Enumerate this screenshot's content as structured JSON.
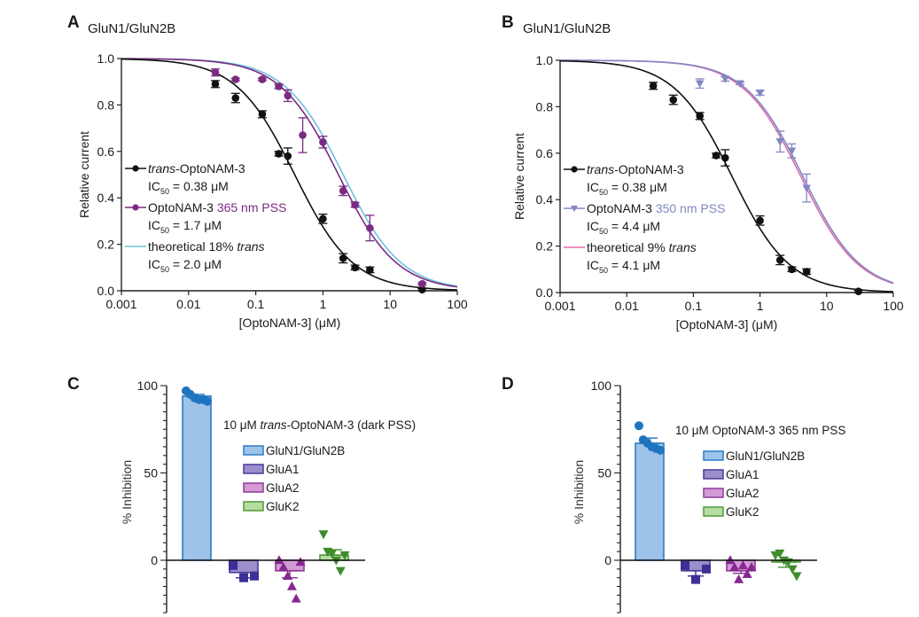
{
  "chart_data": [
    {
      "id": "A",
      "type": "scatter",
      "panel_letter": "A",
      "title": "GluN1/GluN2B",
      "xlabel": "[OptoNAM-3] (μM)",
      "ylabel": "Relative current",
      "xscale": "log",
      "xlim": [
        0.001,
        100
      ],
      "ylim": [
        0,
        1.0
      ],
      "xticks": [
        0.001,
        0.01,
        0.1,
        1,
        10,
        100
      ],
      "xtick_labels": [
        "0.001",
        "0.01",
        "0.1",
        "1",
        "10",
        "100"
      ],
      "yticks": [
        0,
        0.2,
        0.4,
        0.6,
        0.8,
        1.0
      ],
      "ytick_labels": [
        "0.0",
        "0.2",
        "0.4",
        "0.6",
        "0.8",
        "1.0"
      ],
      "legend_position": "center-left",
      "series": [
        {
          "name": "trans-OptoNAM-3",
          "legend_prefix_italic": "trans",
          "legend_main": "-OptoNAM-3",
          "legend_ic50": "= 0.38 μM",
          "color": "#111111",
          "marker": "circle",
          "fit": {
            "ic50": 0.38,
            "hill": 1.0
          },
          "x": [
            0.025,
            0.05,
            0.125,
            0.22,
            0.3,
            1,
            2,
            3,
            5,
            30
          ],
          "y": [
            0.89,
            0.83,
            0.76,
            0.59,
            0.58,
            0.31,
            0.14,
            0.1,
            0.09,
            0.005
          ],
          "err": [
            0.015,
            0.02,
            0.015,
            0.01,
            0.035,
            0.02,
            0.02,
            0.01,
            0.012,
            0.005
          ]
        },
        {
          "name": "OptoNAM-3 365 nm PSS",
          "legend_main": "OptoNAM-3 ",
          "legend_colored": "365 nm PSS",
          "legend_ic50": "= 1.7 μM",
          "color": "#7b2a82",
          "marker": "circle",
          "fit": {
            "ic50": 1.7,
            "hill": 1.0
          },
          "x": [
            0.025,
            0.05,
            0.125,
            0.22,
            0.3,
            0.5,
            1,
            2,
            3,
            5,
            30
          ],
          "y": [
            0.94,
            0.91,
            0.91,
            0.88,
            0.84,
            0.67,
            0.64,
            0.43,
            0.37,
            0.27,
            0.03
          ],
          "err": [
            0.015,
            0.005,
            0.005,
            0.01,
            0.025,
            0.075,
            0.025,
            0.02,
            0.01,
            0.055,
            0.005
          ]
        },
        {
          "name": "theoretical 18% trans",
          "legend_main": "theoretical 18% ",
          "legend_suffix_italic": "trans",
          "legend_ic50": "= 2.0 μM",
          "color": "#6fc0dc",
          "marker": "none",
          "fit": {
            "ic50": 2.0,
            "hill": 1.0
          }
        }
      ]
    },
    {
      "id": "B",
      "type": "scatter",
      "panel_letter": "B",
      "title": "GluN1/GluN2B",
      "xlabel": "[OptoNAM-3] (μM)",
      "ylabel": "Relative current",
      "xscale": "log",
      "xlim": [
        0.001,
        100
      ],
      "ylim": [
        0,
        1.0
      ],
      "xticks": [
        0.001,
        0.01,
        0.1,
        1,
        10,
        100
      ],
      "xtick_labels": [
        "0.001",
        "0.01",
        "0.1",
        "1",
        "10",
        "100"
      ],
      "yticks": [
        0,
        0.2,
        0.4,
        0.6,
        0.8,
        1.0
      ],
      "ytick_labels": [
        "0.0",
        "0.2",
        "0.4",
        "0.6",
        "0.8",
        "1.0"
      ],
      "legend_position": "center-left",
      "series": [
        {
          "name": "trans-OptoNAM-3",
          "legend_prefix_italic": "trans",
          "legend_main": "-OptoNAM-3",
          "legend_ic50": "= 0.38 μM",
          "color": "#111111",
          "marker": "circle",
          "fit": {
            "ic50": 0.38,
            "hill": 1.0
          },
          "x": [
            0.025,
            0.05,
            0.125,
            0.22,
            0.3,
            1,
            2,
            3,
            5,
            30
          ],
          "y": [
            0.89,
            0.83,
            0.76,
            0.59,
            0.58,
            0.31,
            0.14,
            0.1,
            0.09,
            0.005
          ],
          "err": [
            0.015,
            0.02,
            0.015,
            0.01,
            0.035,
            0.02,
            0.02,
            0.01,
            0.012,
            0.005
          ]
        },
        {
          "name": "OptoNAM-3 350 nm PSS",
          "legend_main": "OptoNAM-3 ",
          "legend_colored": "350 nm PSS",
          "legend_ic50": "= 4.4 μM",
          "color": "#8187c4",
          "marker": "triangle-down",
          "fit": {
            "ic50": 4.4,
            "hill": 1.0
          },
          "x": [
            0.125,
            0.3,
            0.5,
            1,
            2,
            3,
            5
          ],
          "y": [
            0.9,
            0.92,
            0.9,
            0.86,
            0.65,
            0.61,
            0.45
          ],
          "err": [
            0.02,
            0.01,
            0.005,
            0.01,
            0.045,
            0.03,
            0.06
          ]
        },
        {
          "name": "theoretical 9% trans",
          "legend_main": "theoretical 9% ",
          "legend_suffix_italic": "trans",
          "legend_ic50": "= 4.1 μM",
          "color": "#e06aa8",
          "marker": "none",
          "fit": {
            "ic50": 4.1,
            "hill": 1.0
          }
        }
      ]
    },
    {
      "id": "C",
      "type": "bar",
      "panel_letter": "C",
      "ylabel": "% Inhibition",
      "ylim": [
        -30,
        100
      ],
      "yticks": [
        0,
        50,
        100
      ],
      "ytick_labels": [
        "0",
        "50",
        "100"
      ],
      "annotation_prefix": "10 μM ",
      "annotation_italic": "trans",
      "annotation_suffix": "-OptoNAM-3 (dark PSS)",
      "legend_position": "right",
      "categories": [
        "GluN1/GluN2B",
        "GluA1",
        "GluA2",
        "GluK2"
      ],
      "values": [
        94,
        -7,
        -6,
        3
      ],
      "sem": [
        1,
        3,
        4,
        3
      ],
      "points": [
        [
          97,
          95,
          93,
          92,
          92,
          91
        ],
        [
          -3,
          -10,
          -9
        ],
        [
          0,
          -4,
          -9,
          -15,
          -22,
          -1
        ]
      ],
      "points_gluk2": [
        15,
        5,
        4,
        0,
        -6,
        3
      ],
      "markers": [
        "circle",
        "square",
        "triangle-up",
        "triangle-down"
      ],
      "colors": [
        {
          "fill": "#9dc3e8",
          "stroke": "#2c7cc4",
          "point": "#1f74c0"
        },
        {
          "fill": "#9b8ecb",
          "stroke": "#4b3a9c",
          "point": "#3c2f96"
        },
        {
          "fill": "#d49ad6",
          "stroke": "#8e3a99",
          "point": "#86288f"
        },
        {
          "fill": "#b6dca0",
          "stroke": "#4f9a3a",
          "point": "#3f8c2c"
        }
      ]
    },
    {
      "id": "D",
      "type": "bar",
      "panel_letter": "D",
      "ylabel": "% Inhibition",
      "ylim": [
        -30,
        100
      ],
      "yticks": [
        0,
        50,
        100
      ],
      "ytick_labels": [
        "0",
        "50",
        "100"
      ],
      "annotation_prefix": "10 μM OptoNAM-3 365 nm PSS",
      "annotation_italic": "",
      "annotation_suffix": "",
      "legend_position": "right",
      "categories": [
        "GluN1/GluN2B",
        "GluA1",
        "GluA2",
        "GluK2"
      ],
      "values": [
        67,
        -6,
        -6,
        -1
      ],
      "sem": [
        3,
        3,
        1.5,
        3
      ],
      "points": [
        [
          77,
          69,
          67,
          65,
          64,
          63
        ],
        [
          -3,
          -11,
          -5
        ],
        [
          0,
          -4,
          -11,
          -3,
          -8,
          -4
        ]
      ],
      "points_gluk2": [
        3,
        4,
        0,
        -1,
        -5,
        -9
      ],
      "markers": [
        "circle",
        "square",
        "triangle-up",
        "triangle-down"
      ],
      "colors": [
        {
          "fill": "#9dc3e8",
          "stroke": "#2c7cc4",
          "point": "#1f74c0"
        },
        {
          "fill": "#9b8ecb",
          "stroke": "#4b3a9c",
          "point": "#3c2f96"
        },
        {
          "fill": "#d49ad6",
          "stroke": "#8e3a99",
          "point": "#86288f"
        },
        {
          "fill": "#b6dca0",
          "stroke": "#4f9a3a",
          "point": "#3f8c2c"
        }
      ]
    }
  ],
  "labels": {
    "ic_prefix": "IC",
    "ic_sub": "50"
  }
}
